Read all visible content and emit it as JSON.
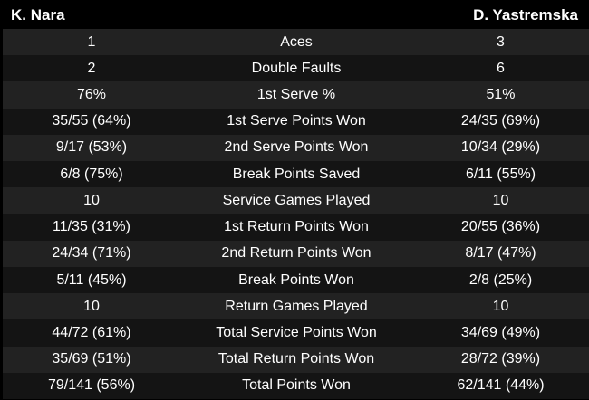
{
  "header": {
    "player_left": "K. Nara",
    "player_right": "D. Yastremska"
  },
  "stats": [
    {
      "left": "1",
      "label": "Aces",
      "right": "3"
    },
    {
      "left": "2",
      "label": "Double Faults",
      "right": "6"
    },
    {
      "left": "76%",
      "label": "1st Serve %",
      "right": "51%"
    },
    {
      "left": "35/55 (64%)",
      "label": "1st Serve Points Won",
      "right": "24/35 (69%)"
    },
    {
      "left": "9/17 (53%)",
      "label": "2nd Serve Points Won",
      "right": "10/34 (29%)"
    },
    {
      "left": "6/8 (75%)",
      "label": "Break Points Saved",
      "right": "6/11 (55%)"
    },
    {
      "left": "10",
      "label": "Service Games Played",
      "right": "10"
    },
    {
      "left": "11/35 (31%)",
      "label": "1st Return Points Won",
      "right": "20/55 (36%)"
    },
    {
      "left": "24/34 (71%)",
      "label": "2nd Return Points Won",
      "right": "8/17 (47%)"
    },
    {
      "left": "5/11 (45%)",
      "label": "Break Points Won",
      "right": "2/8 (25%)"
    },
    {
      "left": "10",
      "label": "Return Games Played",
      "right": "10"
    },
    {
      "left": "44/72 (61%)",
      "label": "Total Service Points Won",
      "right": "34/69 (49%)"
    },
    {
      "left": "35/69 (51%)",
      "label": "Total Return Points Won",
      "right": "28/72 (39%)"
    },
    {
      "left": "79/141 (56%)",
      "label": "Total Points Won",
      "right": "62/141 (44%)"
    }
  ],
  "colors": {
    "background": "#000000",
    "row_odd": "#222222",
    "row_even": "#141414",
    "text": "#ffffff"
  }
}
